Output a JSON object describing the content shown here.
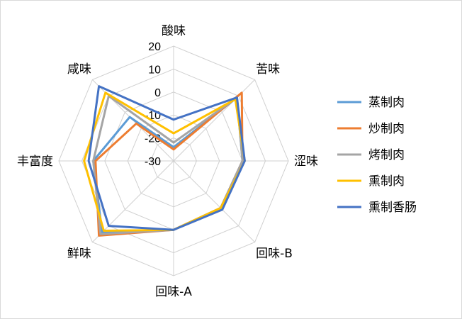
{
  "chart_data": {
    "type": "radar",
    "title": "",
    "axes": [
      "酸味",
      "苦味",
      "涩味",
      "回味-B",
      "回味-A",
      "鲜味",
      "丰富度",
      "咸味"
    ],
    "range": [
      -30,
      20
    ],
    "ticks": [
      20,
      10,
      0,
      -10,
      -20,
      -30
    ],
    "grid": true,
    "legend_position": "right",
    "series": [
      {
        "name": "蒸制肉",
        "color": "#5B9BD5",
        "values": [
          -24,
          9,
          0,
          -1,
          0,
          14,
          5,
          -3
        ]
      },
      {
        "name": "炒制肉",
        "color": "#ED7D31",
        "values": [
          -25,
          12,
          0,
          -1,
          0,
          16,
          4,
          -7
        ]
      },
      {
        "name": "烤制肉",
        "color": "#A5A5A5",
        "values": [
          -22,
          9,
          0,
          -1,
          0,
          15,
          5,
          10
        ]
      },
      {
        "name": "熏制肉",
        "color": "#FFC000",
        "values": [
          -18,
          8,
          1,
          -1,
          0,
          13,
          9,
          12
        ]
      },
      {
        "name": "熏制香肠",
        "color": "#4472C4",
        "values": [
          -12,
          9,
          1,
          0,
          0,
          10,
          7,
          16
        ]
      }
    ]
  }
}
